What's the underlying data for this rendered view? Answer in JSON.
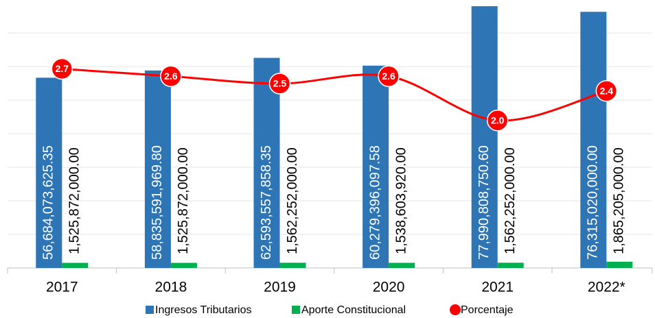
{
  "chart_data": {
    "type": "bar",
    "categories": [
      "2017",
      "2018",
      "2019",
      "2020",
      "2021",
      "2022*"
    ],
    "series": [
      {
        "name": "Ingresos Tributarios",
        "color": "#2e75b6",
        "type": "bar",
        "values": [
          56684073625.35,
          58835591969.8,
          62593557858.35,
          60279396097.58,
          77990808750.6,
          76315020000.0
        ],
        "value_labels": [
          "56,684,073,625.35",
          "58,835,591,969.80",
          "62,593,557,858.35",
          "60,279,396,097.58",
          "77,990,808,750.60",
          "76,315,020,000.00"
        ]
      },
      {
        "name": "Aporte Constitucional",
        "color": "#00b050",
        "type": "bar",
        "values": [
          1525872000.0,
          1525872000.0,
          1562252000.0,
          1538603920.0,
          1562252000.0,
          1865205000.0
        ],
        "value_labels": [
          "1,525,872,000.00",
          "1,525,872,000.00",
          "1,562,252,000.00",
          "1,538,603,920.00",
          "1,562,252,000.00",
          "1,865,205,000.00"
        ]
      },
      {
        "name": "Porcentaje",
        "color": "#ff0000",
        "type": "line",
        "axis": "y2",
        "values": [
          2.7,
          2.6,
          2.5,
          2.6,
          2.0,
          2.4
        ],
        "value_labels": [
          "2.7",
          "2.6",
          "2.5",
          "2.6",
          "2.0",
          "2.4"
        ]
      }
    ],
    "ylim": [
      0,
      78000000000
    ],
    "yticks": [
      0,
      10000000000,
      20000000000,
      30000000000,
      40000000000,
      50000000000,
      60000000000,
      70000000000
    ],
    "y2lim": [
      0,
      3.55
    ],
    "grid": true,
    "legend": "bottom"
  }
}
